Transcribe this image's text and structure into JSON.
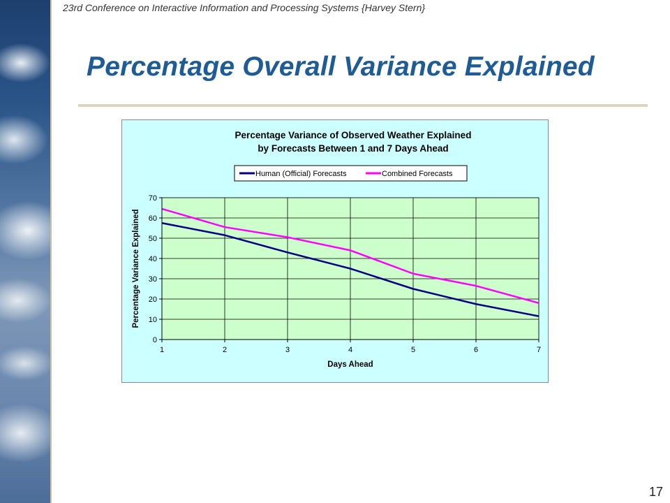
{
  "slide": {
    "header": "23rd Conference on Interactive Information and Processing Systems {Harvey Stern}",
    "title": "Percentage Overall Variance Explained",
    "page_number": "17"
  },
  "chart_data": {
    "type": "line",
    "title": "Percentage Variance of Observed Weather Explained",
    "subtitle": "by Forecasts Between 1 and 7 Days Ahead",
    "xlabel": "Days Ahead",
    "ylabel": "Percentage Variance Explained",
    "x": [
      1,
      2,
      3,
      4,
      5,
      6,
      7
    ],
    "ylim": [
      0,
      70
    ],
    "yticks": [
      0,
      10,
      20,
      30,
      40,
      50,
      60,
      70
    ],
    "grid": true,
    "legend_position": "top",
    "series": [
      {
        "name": "Human (Official) Forecasts",
        "color": "#000080",
        "values": [
          57.5,
          51.5,
          43,
          35,
          25,
          17.5,
          11.5
        ]
      },
      {
        "name": "Combined Forecasts",
        "color": "#ff00ff",
        "values": [
          64.5,
          55.5,
          50.5,
          44,
          32.5,
          26.5,
          18
        ]
      }
    ],
    "colors": {
      "chart_area": "#ccffff",
      "plot_area": "#ccffcc"
    }
  }
}
